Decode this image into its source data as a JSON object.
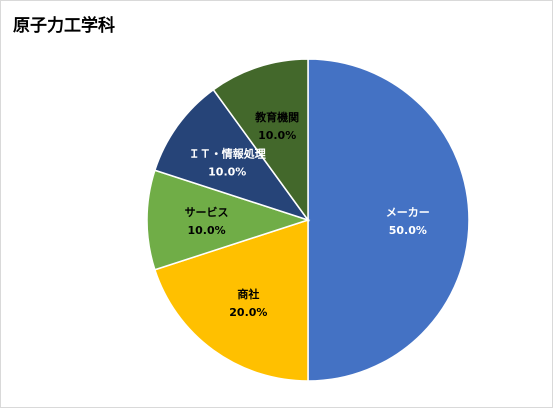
{
  "chart_data": {
    "type": "pie",
    "title": "原子力工学科",
    "slices": [
      {
        "label": "メーカー",
        "value": 50.0,
        "percent_label": "50.0%",
        "color": "#4472C4",
        "text_color": "#ffffff"
      },
      {
        "label": "商社",
        "value": 20.0,
        "percent_label": "20.0%",
        "color": "#FFC000",
        "text_color": "#000000"
      },
      {
        "label": "サービス",
        "value": 10.0,
        "percent_label": "10.0%",
        "color": "#70AD47",
        "text_color": "#000000"
      },
      {
        "label": "ＩＴ・情報処理",
        "value": 10.0,
        "percent_label": "10.0%",
        "color": "#264478",
        "text_color": "#ffffff"
      },
      {
        "label": "教育機関",
        "value": 10.0,
        "percent_label": "10.0%",
        "color": "#43682B",
        "text_color": "#000000"
      }
    ],
    "start_angle": "12 o'clock",
    "direction": "clockwise",
    "legend": "none"
  }
}
